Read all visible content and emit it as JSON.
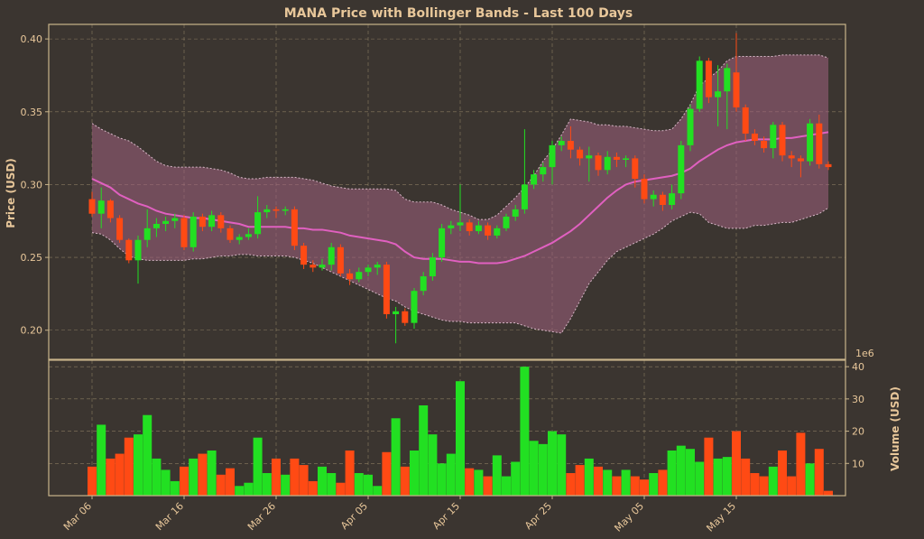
{
  "chart_data": {
    "type": "candlestick",
    "title": "MANA Price with Bollinger Bands - Last 100 Days",
    "ylabel": "Price (USD)",
    "volume_ylabel": "Volume (USD)",
    "volume_multiplier": "1e6",
    "price_ylim": [
      0.18,
      0.41
    ],
    "volume_ylim": [
      0,
      42
    ],
    "price_ticks": [
      "0.20",
      "0.25",
      "0.30",
      "0.35",
      "0.40"
    ],
    "volume_ticks": [
      "10",
      "20",
      "30",
      "40"
    ],
    "x_ticks": [
      "Mar 06",
      "Mar 16",
      "Mar 26",
      "Apr 05",
      "Apr 15",
      "Apr 25",
      "May 05",
      "May 15"
    ],
    "grid": true,
    "colors": {
      "background": "#3b3530",
      "up": "#22e022",
      "down": "#ff4a14",
      "sma": "#e060c0",
      "band_fill": "#a06080",
      "band_edge": "#d8b8c8",
      "text": "#e8c79a",
      "frame": "#c9b48a"
    },
    "series": [
      {
        "x": 0,
        "o": 0.29,
        "c": 0.28,
        "h": 0.295,
        "l": 0.278,
        "v": 9
      },
      {
        "x": 1,
        "o": 0.28,
        "c": 0.289,
        "h": 0.298,
        "l": 0.27,
        "v": 22
      },
      {
        "x": 2,
        "o": 0.289,
        "c": 0.277,
        "h": 0.29,
        "l": 0.274,
        "v": 11.5
      },
      {
        "x": 3,
        "o": 0.277,
        "c": 0.262,
        "h": 0.279,
        "l": 0.26,
        "v": 13
      },
      {
        "x": 4,
        "o": 0.262,
        "c": 0.248,
        "h": 0.263,
        "l": 0.246,
        "v": 18
      },
      {
        "x": 5,
        "o": 0.248,
        "c": 0.262,
        "h": 0.265,
        "l": 0.232,
        "v": 19
      },
      {
        "x": 6,
        "o": 0.262,
        "c": 0.27,
        "h": 0.283,
        "l": 0.257,
        "v": 25
      },
      {
        "x": 7,
        "o": 0.27,
        "c": 0.273,
        "h": 0.277,
        "l": 0.264,
        "v": 11.5
      },
      {
        "x": 8,
        "o": 0.273,
        "c": 0.275,
        "h": 0.278,
        "l": 0.268,
        "v": 8
      },
      {
        "x": 9,
        "o": 0.275,
        "c": 0.277,
        "h": 0.28,
        "l": 0.27,
        "v": 4.5
      },
      {
        "x": 10,
        "o": 0.277,
        "c": 0.257,
        "h": 0.279,
        "l": 0.255,
        "v": 9
      },
      {
        "x": 11,
        "o": 0.257,
        "c": 0.278,
        "h": 0.281,
        "l": 0.254,
        "v": 11.5
      },
      {
        "x": 12,
        "o": 0.278,
        "c": 0.271,
        "h": 0.28,
        "l": 0.268,
        "v": 13
      },
      {
        "x": 13,
        "o": 0.271,
        "c": 0.279,
        "h": 0.282,
        "l": 0.268,
        "v": 14
      },
      {
        "x": 14,
        "o": 0.279,
        "c": 0.27,
        "h": 0.281,
        "l": 0.267,
        "v": 6.5
      },
      {
        "x": 15,
        "o": 0.27,
        "c": 0.262,
        "h": 0.272,
        "l": 0.26,
        "v": 8.5
      },
      {
        "x": 16,
        "o": 0.262,
        "c": 0.264,
        "h": 0.266,
        "l": 0.259,
        "v": 3
      },
      {
        "x": 17,
        "o": 0.264,
        "c": 0.266,
        "h": 0.27,
        "l": 0.262,
        "v": 4
      },
      {
        "x": 18,
        "o": 0.266,
        "c": 0.281,
        "h": 0.292,
        "l": 0.263,
        "v": 18
      },
      {
        "x": 19,
        "o": 0.281,
        "c": 0.283,
        "h": 0.286,
        "l": 0.277,
        "v": 7
      },
      {
        "x": 20,
        "o": 0.283,
        "c": 0.282,
        "h": 0.285,
        "l": 0.277,
        "v": 11.5
      },
      {
        "x": 21,
        "o": 0.282,
        "c": 0.283,
        "h": 0.285,
        "l": 0.279,
        "v": 6.5
      },
      {
        "x": 22,
        "o": 0.283,
        "c": 0.258,
        "h": 0.285,
        "l": 0.255,
        "v": 11.5
      },
      {
        "x": 23,
        "o": 0.258,
        "c": 0.245,
        "h": 0.26,
        "l": 0.242,
        "v": 9.5
      },
      {
        "x": 24,
        "o": 0.245,
        "c": 0.243,
        "h": 0.248,
        "l": 0.24,
        "v": 4.5
      },
      {
        "x": 25,
        "o": 0.243,
        "c": 0.245,
        "h": 0.249,
        "l": 0.241,
        "v": 9
      },
      {
        "x": 26,
        "o": 0.245,
        "c": 0.257,
        "h": 0.26,
        "l": 0.241,
        "v": 7
      },
      {
        "x": 27,
        "o": 0.257,
        "c": 0.239,
        "h": 0.259,
        "l": 0.237,
        "v": 4
      },
      {
        "x": 28,
        "o": 0.239,
        "c": 0.235,
        "h": 0.242,
        "l": 0.231,
        "v": 14
      },
      {
        "x": 29,
        "o": 0.235,
        "c": 0.24,
        "h": 0.243,
        "l": 0.233,
        "v": 7
      },
      {
        "x": 30,
        "o": 0.24,
        "c": 0.243,
        "h": 0.245,
        "l": 0.237,
        "v": 6.5
      },
      {
        "x": 31,
        "o": 0.243,
        "c": 0.245,
        "h": 0.247,
        "l": 0.238,
        "v": 3
      },
      {
        "x": 32,
        "o": 0.245,
        "c": 0.211,
        "h": 0.247,
        "l": 0.208,
        "v": 13.5
      },
      {
        "x": 33,
        "o": 0.211,
        "c": 0.213,
        "h": 0.216,
        "l": 0.191,
        "v": 24
      },
      {
        "x": 34,
        "o": 0.213,
        "c": 0.205,
        "h": 0.215,
        "l": 0.203,
        "v": 9
      },
      {
        "x": 35,
        "o": 0.205,
        "c": 0.227,
        "h": 0.229,
        "l": 0.201,
        "v": 14
      },
      {
        "x": 36,
        "o": 0.227,
        "c": 0.237,
        "h": 0.24,
        "l": 0.224,
        "v": 28
      },
      {
        "x": 37,
        "o": 0.237,
        "c": 0.25,
        "h": 0.253,
        "l": 0.234,
        "v": 19
      },
      {
        "x": 38,
        "o": 0.25,
        "c": 0.27,
        "h": 0.273,
        "l": 0.247,
        "v": 10
      },
      {
        "x": 39,
        "o": 0.27,
        "c": 0.272,
        "h": 0.275,
        "l": 0.266,
        "v": 13
      },
      {
        "x": 40,
        "o": 0.272,
        "c": 0.274,
        "h": 0.3,
        "l": 0.268,
        "v": 35.5
      },
      {
        "x": 41,
        "o": 0.274,
        "c": 0.268,
        "h": 0.276,
        "l": 0.265,
        "v": 8.5
      },
      {
        "x": 42,
        "o": 0.268,
        "c": 0.272,
        "h": 0.275,
        "l": 0.266,
        "v": 8
      },
      {
        "x": 43,
        "o": 0.272,
        "c": 0.265,
        "h": 0.274,
        "l": 0.262,
        "v": 6
      },
      {
        "x": 44,
        "o": 0.265,
        "c": 0.27,
        "h": 0.272,
        "l": 0.263,
        "v": 12.5
      },
      {
        "x": 45,
        "o": 0.27,
        "c": 0.278,
        "h": 0.28,
        "l": 0.268,
        "v": 6
      },
      {
        "x": 46,
        "o": 0.278,
        "c": 0.283,
        "h": 0.286,
        "l": 0.275,
        "v": 10.5
      },
      {
        "x": 47,
        "o": 0.283,
        "c": 0.3,
        "h": 0.338,
        "l": 0.28,
        "v": 40
      },
      {
        "x": 48,
        "o": 0.3,
        "c": 0.307,
        "h": 0.31,
        "l": 0.297,
        "v": 17
      },
      {
        "x": 49,
        "o": 0.307,
        "c": 0.312,
        "h": 0.315,
        "l": 0.302,
        "v": 16
      },
      {
        "x": 50,
        "o": 0.312,
        "c": 0.327,
        "h": 0.33,
        "l": 0.3,
        "v": 20
      },
      {
        "x": 51,
        "o": 0.327,
        "c": 0.33,
        "h": 0.333,
        "l": 0.323,
        "v": 19
      },
      {
        "x": 52,
        "o": 0.33,
        "c": 0.324,
        "h": 0.34,
        "l": 0.318,
        "v": 7
      },
      {
        "x": 53,
        "o": 0.324,
        "c": 0.318,
        "h": 0.326,
        "l": 0.313,
        "v": 9.5
      },
      {
        "x": 54,
        "o": 0.318,
        "c": 0.32,
        "h": 0.326,
        "l": 0.302,
        "v": 11.5
      },
      {
        "x": 55,
        "o": 0.32,
        "c": 0.31,
        "h": 0.322,
        "l": 0.306,
        "v": 9
      },
      {
        "x": 56,
        "o": 0.31,
        "c": 0.319,
        "h": 0.323,
        "l": 0.307,
        "v": 8
      },
      {
        "x": 57,
        "o": 0.319,
        "c": 0.317,
        "h": 0.322,
        "l": 0.312,
        "v": 6
      },
      {
        "x": 58,
        "o": 0.317,
        "c": 0.318,
        "h": 0.32,
        "l": 0.312,
        "v": 8
      },
      {
        "x": 59,
        "o": 0.318,
        "c": 0.304,
        "h": 0.32,
        "l": 0.298,
        "v": 6
      },
      {
        "x": 60,
        "o": 0.304,
        "c": 0.29,
        "h": 0.307,
        "l": 0.287,
        "v": 5
      },
      {
        "x": 61,
        "o": 0.29,
        "c": 0.293,
        "h": 0.296,
        "l": 0.285,
        "v": 7
      },
      {
        "x": 62,
        "o": 0.293,
        "c": 0.286,
        "h": 0.295,
        "l": 0.282,
        "v": 8
      },
      {
        "x": 63,
        "o": 0.286,
        "c": 0.294,
        "h": 0.3,
        "l": 0.283,
        "v": 14
      },
      {
        "x": 64,
        "o": 0.294,
        "c": 0.327,
        "h": 0.33,
        "l": 0.29,
        "v": 15.5
      },
      {
        "x": 65,
        "o": 0.327,
        "c": 0.352,
        "h": 0.355,
        "l": 0.323,
        "v": 14.5
      },
      {
        "x": 66,
        "o": 0.352,
        "c": 0.385,
        "h": 0.388,
        "l": 0.35,
        "v": 10.5
      },
      {
        "x": 67,
        "o": 0.385,
        "c": 0.36,
        "h": 0.387,
        "l": 0.356,
        "v": 18
      },
      {
        "x": 68,
        "o": 0.36,
        "c": 0.364,
        "h": 0.382,
        "l": 0.34,
        "v": 11.5
      },
      {
        "x": 69,
        "o": 0.364,
        "c": 0.38,
        "h": 0.383,
        "l": 0.338,
        "v": 12
      },
      {
        "x": 70,
        "o": 0.377,
        "c": 0.353,
        "h": 0.404,
        "l": 0.35,
        "v": 20
      },
      {
        "x": 71,
        "o": 0.353,
        "c": 0.335,
        "h": 0.355,
        "l": 0.33,
        "v": 11.5
      },
      {
        "x": 72,
        "o": 0.335,
        "c": 0.33,
        "h": 0.338,
        "l": 0.327,
        "v": 7
      },
      {
        "x": 73,
        "o": 0.33,
        "c": 0.325,
        "h": 0.333,
        "l": 0.322,
        "v": 6
      },
      {
        "x": 74,
        "o": 0.325,
        "c": 0.341,
        "h": 0.343,
        "l": 0.318,
        "v": 9
      },
      {
        "x": 75,
        "o": 0.341,
        "c": 0.32,
        "h": 0.343,
        "l": 0.316,
        "v": 14
      },
      {
        "x": 76,
        "o": 0.32,
        "c": 0.318,
        "h": 0.323,
        "l": 0.312,
        "v": 6
      },
      {
        "x": 77,
        "o": 0.318,
        "c": 0.316,
        "h": 0.32,
        "l": 0.305,
        "v": 19.5
      },
      {
        "x": 78,
        "o": 0.316,
        "c": 0.342,
        "h": 0.345,
        "l": 0.313,
        "v": 10
      },
      {
        "x": 79,
        "o": 0.342,
        "c": 0.314,
        "h": 0.348,
        "l": 0.311,
        "v": 14.5
      },
      {
        "x": 80,
        "o": 0.314,
        "c": 0.312,
        "h": 0.316,
        "l": 0.31,
        "v": 1.5
      }
    ],
    "sma": [
      0.304,
      0.301,
      0.298,
      0.293,
      0.29,
      0.287,
      0.285,
      0.282,
      0.28,
      0.279,
      0.278,
      0.277,
      0.277,
      0.276,
      0.275,
      0.274,
      0.273,
      0.271,
      0.271,
      0.271,
      0.271,
      0.271,
      0.27,
      0.27,
      0.269,
      0.269,
      0.268,
      0.267,
      0.265,
      0.264,
      0.263,
      0.262,
      0.261,
      0.259,
      0.254,
      0.25,
      0.249,
      0.249,
      0.249,
      0.248,
      0.247,
      0.247,
      0.246,
      0.246,
      0.246,
      0.247,
      0.249,
      0.251,
      0.254,
      0.257,
      0.26,
      0.264,
      0.268,
      0.273,
      0.279,
      0.285,
      0.291,
      0.296,
      0.3,
      0.302,
      0.303,
      0.304,
      0.305,
      0.306,
      0.308,
      0.311,
      0.316,
      0.32,
      0.324,
      0.327,
      0.329,
      0.33,
      0.331,
      0.331,
      0.331,
      0.332,
      0.332,
      0.333,
      0.334,
      0.335,
      0.336
    ],
    "upper": [
      0.342,
      0.338,
      0.335,
      0.332,
      0.33,
      0.326,
      0.321,
      0.316,
      0.313,
      0.312,
      0.312,
      0.312,
      0.312,
      0.311,
      0.31,
      0.308,
      0.305,
      0.304,
      0.304,
      0.305,
      0.305,
      0.305,
      0.305,
      0.304,
      0.303,
      0.301,
      0.299,
      0.298,
      0.297,
      0.297,
      0.297,
      0.297,
      0.297,
      0.296,
      0.29,
      0.288,
      0.288,
      0.288,
      0.286,
      0.283,
      0.281,
      0.279,
      0.276,
      0.276,
      0.279,
      0.285,
      0.291,
      0.298,
      0.306,
      0.316,
      0.324,
      0.334,
      0.345,
      0.344,
      0.343,
      0.341,
      0.341,
      0.34,
      0.34,
      0.339,
      0.338,
      0.337,
      0.337,
      0.338,
      0.345,
      0.355,
      0.368,
      0.373,
      0.378,
      0.385,
      0.388,
      0.388,
      0.388,
      0.388,
      0.388,
      0.389,
      0.389,
      0.389,
      0.389,
      0.389,
      0.387
    ],
    "lower": [
      0.267,
      0.266,
      0.262,
      0.256,
      0.251,
      0.249,
      0.248,
      0.248,
      0.248,
      0.248,
      0.248,
      0.249,
      0.249,
      0.25,
      0.251,
      0.251,
      0.252,
      0.252,
      0.251,
      0.251,
      0.251,
      0.251,
      0.25,
      0.248,
      0.246,
      0.243,
      0.24,
      0.237,
      0.234,
      0.231,
      0.228,
      0.225,
      0.222,
      0.22,
      0.216,
      0.213,
      0.211,
      0.209,
      0.207,
      0.206,
      0.206,
      0.205,
      0.205,
      0.205,
      0.205,
      0.205,
      0.205,
      0.203,
      0.201,
      0.2,
      0.199,
      0.198,
      0.208,
      0.22,
      0.232,
      0.24,
      0.248,
      0.254,
      0.257,
      0.26,
      0.263,
      0.266,
      0.27,
      0.275,
      0.278,
      0.281,
      0.28,
      0.274,
      0.272,
      0.27,
      0.27,
      0.27,
      0.272,
      0.272,
      0.273,
      0.274,
      0.274,
      0.276,
      0.278,
      0.28,
      0.284
    ]
  }
}
